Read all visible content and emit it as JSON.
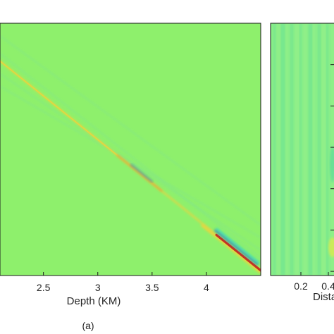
{
  "chart_data": [
    {
      "type": "heatmap",
      "panel_label": "(a)",
      "xlabel": "Depth (KM)",
      "ylabel": "",
      "title": "",
      "xlim": [
        2.1,
        4.5
      ],
      "x_ticks": [
        2.5,
        3,
        3.5,
        4
      ],
      "x_tick_labels": [
        "2.5",
        "3",
        "3.5",
        "4"
      ],
      "colors": {
        "background": "#8ef06c",
        "positive": "#c8281c",
        "mid_positive": "#f2d23a",
        "negative": "#1f6fd0",
        "mid_negative": "#2fd8d0",
        "frame": "#1a1a1a"
      },
      "features": [
        {
          "kind": "primary-event",
          "from": [
            2.1,
            0.15
          ],
          "to": [
            4.5,
            0.98
          ],
          "max_amplitude_at": 4.45
        },
        {
          "kind": "side-lobe",
          "from": [
            2.1,
            0.12
          ],
          "to": [
            4.5,
            0.93
          ]
        },
        {
          "kind": "side-lobe",
          "from": [
            2.1,
            0.2
          ],
          "to": [
            4.5,
            0.9
          ]
        },
        {
          "kind": "side-lobe",
          "from": [
            2.1,
            0.25
          ],
          "to": [
            4.5,
            0.85
          ]
        },
        {
          "kind": "side-lobe",
          "from": [
            2.1,
            0.05
          ],
          "to": [
            4.5,
            0.8
          ]
        }
      ]
    },
    {
      "type": "heatmap",
      "xlabel": "Dista",
      "x_ticks": [
        0.2,
        0.4
      ],
      "x_tick_labels": [
        "0.2",
        "0.4"
      ],
      "right_ticks": 6,
      "colors": {
        "background": "#88ee88",
        "streak_light": "#a7f28a",
        "streak_dark": "#4ed59e",
        "accent": "#d6ea52"
      }
    }
  ]
}
